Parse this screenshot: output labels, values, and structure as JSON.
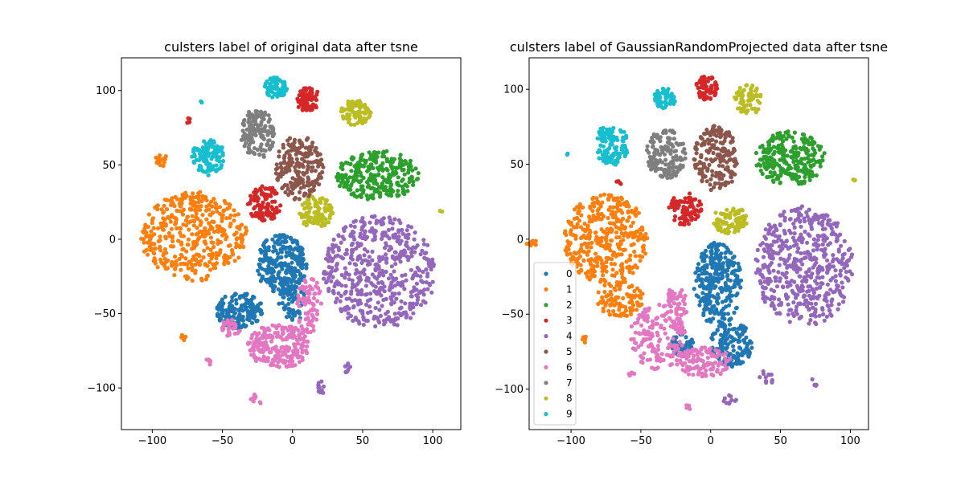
{
  "chart_data": [
    {
      "type": "scatter",
      "title": "culsters label of original data after tsne",
      "xlabel": "",
      "ylabel": "",
      "xlim": [
        -122,
        120
      ],
      "ylim": [
        -128,
        122
      ],
      "xticks": [
        -100,
        -50,
        0,
        50,
        100
      ],
      "yticks": [
        -100,
        -50,
        0,
        50,
        100
      ],
      "xtick_labels": [
        "−100",
        "−50",
        "0",
        "50",
        "100"
      ],
      "ytick_labels": [
        "−100",
        "−50",
        "0",
        "50",
        "100"
      ],
      "grid": false,
      "legend": null,
      "series": [
        {
          "name": "0",
          "color": "#1f77b4",
          "clusters": [
            {
              "cx": -8,
              "cy": -17,
              "rx": 18,
              "ry": 20,
              "n": 260
            },
            {
              "cx": -38,
              "cy": -48,
              "rx": 17,
              "ry": 12,
              "n": 160
            },
            {
              "cx": 0,
              "cy": -40,
              "rx": 10,
              "ry": 16,
              "n": 70
            }
          ]
        },
        {
          "name": "1",
          "color": "#ff7f0e",
          "clusters": [
            {
              "cx": -70,
              "cy": 2,
              "rx": 38,
              "ry": 30,
              "n": 420
            },
            {
              "cx": -93,
              "cy": 53,
              "rx": 5,
              "ry": 4,
              "n": 14
            },
            {
              "cx": -78,
              "cy": -66,
              "rx": 2,
              "ry": 2,
              "n": 5
            }
          ]
        },
        {
          "name": "2",
          "color": "#2ca02c",
          "clusters": [
            {
              "cx": 60,
              "cy": 43,
              "rx": 30,
              "ry": 17,
              "n": 280
            }
          ]
        },
        {
          "name": "3",
          "color": "#d62728",
          "clusters": [
            {
              "cx": 11,
              "cy": 94,
              "rx": 9,
              "ry": 8,
              "n": 80
            },
            {
              "cx": -20,
              "cy": 24,
              "rx": 12,
              "ry": 12,
              "n": 100
            },
            {
              "cx": -74,
              "cy": 80,
              "rx": 2,
              "ry": 2,
              "n": 5
            }
          ]
        },
        {
          "name": "4",
          "color": "#9467bd",
          "clusters": [
            {
              "cx": 62,
              "cy": -22,
              "rx": 40,
              "ry": 38,
              "n": 520
            },
            {
              "cx": 20,
              "cy": -100,
              "rx": 4,
              "ry": 5,
              "n": 10
            },
            {
              "cx": 39,
              "cy": -87,
              "rx": 3,
              "ry": 4,
              "n": 8
            }
          ]
        },
        {
          "name": "5",
          "color": "#8c564b",
          "clusters": [
            {
              "cx": 5,
              "cy": 48,
              "rx": 17,
              "ry": 22,
              "n": 200
            }
          ]
        },
        {
          "name": "6",
          "color": "#e377c2",
          "clusters": [
            {
              "cx": -10,
              "cy": -72,
              "rx": 22,
              "ry": 15,
              "n": 230
            },
            {
              "cx": 12,
              "cy": -45,
              "rx": 9,
              "ry": 20,
              "n": 80
            },
            {
              "cx": -44,
              "cy": -60,
              "rx": 7,
              "ry": 6,
              "n": 30
            },
            {
              "cx": -25,
              "cy": -107,
              "rx": 5,
              "ry": 4,
              "n": 10
            },
            {
              "cx": -60,
              "cy": -83,
              "rx": 2,
              "ry": 3,
              "n": 6
            }
          ]
        },
        {
          "name": "7",
          "color": "#7f7f7f",
          "clusters": [
            {
              "cx": -25,
              "cy": 71,
              "rx": 12,
              "ry": 17,
              "n": 140
            }
          ]
        },
        {
          "name": "8",
          "color": "#bcbd22",
          "clusters": [
            {
              "cx": 45,
              "cy": 85,
              "rx": 11,
              "ry": 9,
              "n": 90
            },
            {
              "cx": 17,
              "cy": 18,
              "rx": 12,
              "ry": 11,
              "n": 100
            },
            {
              "cx": 106,
              "cy": 19,
              "rx": 1,
              "ry": 1,
              "n": 3
            }
          ]
        },
        {
          "name": "9",
          "color": "#17becf",
          "clusters": [
            {
              "cx": -12,
              "cy": 102,
              "rx": 8,
              "ry": 7,
              "n": 70
            },
            {
              "cx": -60,
              "cy": 55,
              "rx": 12,
              "ry": 12,
              "n": 110
            },
            {
              "cx": -65,
              "cy": 92,
              "rx": 1,
              "ry": 1,
              "n": 2
            }
          ]
        }
      ]
    },
    {
      "type": "scatter",
      "title": "culsters label of GaussianRandomProjected data after tsne",
      "xlabel": "",
      "ylabel": "",
      "xlim": [
        -130,
        113
      ],
      "ylim": [
        -127,
        121
      ],
      "xticks": [
        -100,
        -50,
        0,
        50,
        100
      ],
      "yticks": [
        -100,
        -50,
        0,
        50,
        100
      ],
      "xtick_labels": [
        "−100",
        "−50",
        "0",
        "50",
        "100"
      ],
      "ytick_labels": [
        "−100",
        "−50",
        "0",
        "50",
        "100"
      ],
      "grid": false,
      "legend": "lower left",
      "series": [
        {
          "name": "0",
          "color": "#1f77b4",
          "clusters": [
            {
              "cx": 5,
              "cy": -30,
              "rx": 17,
              "ry": 28,
              "n": 300
            },
            {
              "cx": 15,
              "cy": -70,
              "rx": 15,
              "ry": 15,
              "n": 140
            },
            {
              "cx": -20,
              "cy": -70,
              "rx": 8,
              "ry": 9,
              "n": 50
            }
          ]
        },
        {
          "name": "1",
          "color": "#ff7f0e",
          "clusters": [
            {
              "cx": -75,
              "cy": 0,
              "rx": 30,
              "ry": 30,
              "n": 380
            },
            {
              "cx": -65,
              "cy": -40,
              "rx": 17,
              "ry": 12,
              "n": 100
            },
            {
              "cx": -128,
              "cy": -3,
              "rx": 4,
              "ry": 3,
              "n": 10
            },
            {
              "cx": -90,
              "cy": -67,
              "rx": 2,
              "ry": 2,
              "n": 5
            }
          ]
        },
        {
          "name": "2",
          "color": "#2ca02c",
          "clusters": [
            {
              "cx": 57,
              "cy": 54,
              "rx": 25,
              "ry": 18,
              "n": 260
            }
          ]
        },
        {
          "name": "3",
          "color": "#d62728",
          "clusters": [
            {
              "cx": -3,
              "cy": 101,
              "rx": 8,
              "ry": 8,
              "n": 70
            },
            {
              "cx": -18,
              "cy": 20,
              "rx": 12,
              "ry": 11,
              "n": 90
            },
            {
              "cx": -66,
              "cy": 38,
              "rx": 2,
              "ry": 2,
              "n": 4
            }
          ]
        },
        {
          "name": "4",
          "color": "#9467bd",
          "clusters": [
            {
              "cx": 67,
              "cy": -18,
              "rx": 35,
              "ry": 40,
              "n": 520
            },
            {
              "cx": 40,
              "cy": -92,
              "rx": 6,
              "ry": 5,
              "n": 12
            },
            {
              "cx": 75,
              "cy": -95,
              "rx": 3,
              "ry": 3,
              "n": 6
            },
            {
              "cx": 15,
              "cy": -107,
              "rx": 6,
              "ry": 3,
              "n": 10
            }
          ]
        },
        {
          "name": "5",
          "color": "#8c564b",
          "clusters": [
            {
              "cx": 4,
              "cy": 54,
              "rx": 16,
              "ry": 22,
              "n": 200
            }
          ]
        },
        {
          "name": "6",
          "color": "#e377c2",
          "clusters": [
            {
              "cx": -38,
              "cy": -65,
              "rx": 20,
              "ry": 22,
              "n": 160
            },
            {
              "cx": -5,
              "cy": -82,
              "rx": 20,
              "ry": 10,
              "n": 120
            },
            {
              "cx": -25,
              "cy": -45,
              "rx": 8,
              "ry": 15,
              "n": 60
            },
            {
              "cx": -15,
              "cy": -112,
              "rx": 3,
              "ry": 3,
              "n": 6
            },
            {
              "cx": -57,
              "cy": -90,
              "rx": 3,
              "ry": 3,
              "n": 6
            }
          ]
        },
        {
          "name": "7",
          "color": "#7f7f7f",
          "clusters": [
            {
              "cx": -32,
              "cy": 57,
              "rx": 14,
              "ry": 17,
              "n": 150
            }
          ]
        },
        {
          "name": "8",
          "color": "#bcbd22",
          "clusters": [
            {
              "cx": 27,
              "cy": 93,
              "rx": 10,
              "ry": 10,
              "n": 80
            },
            {
              "cx": 14,
              "cy": 13,
              "rx": 12,
              "ry": 10,
              "n": 90
            },
            {
              "cx": 103,
              "cy": 40,
              "rx": 1,
              "ry": 1,
              "n": 3
            }
          ]
        },
        {
          "name": "9",
          "color": "#17becf",
          "clusters": [
            {
              "cx": -33,
              "cy": 94,
              "rx": 8,
              "ry": 7,
              "n": 60
            },
            {
              "cx": -71,
              "cy": 63,
              "rx": 12,
              "ry": 14,
              "n": 110
            },
            {
              "cx": -103,
              "cy": 57,
              "rx": 1,
              "ry": 1,
              "n": 2
            }
          ]
        }
      ]
    }
  ]
}
